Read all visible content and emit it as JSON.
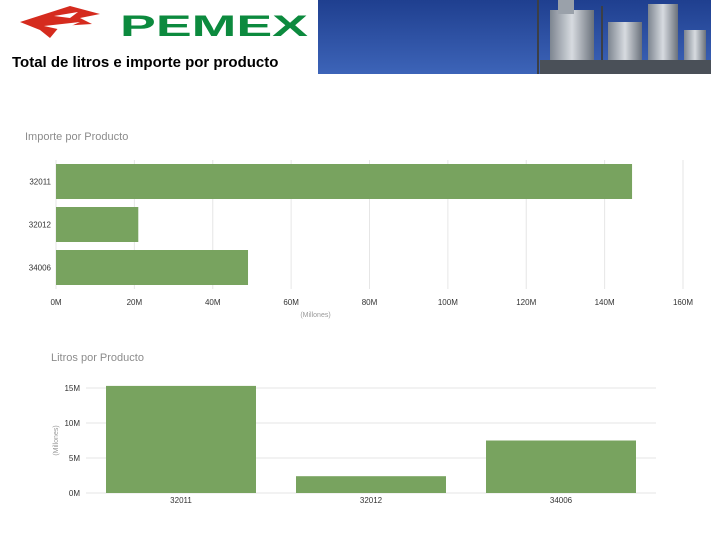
{
  "header": {
    "brand_name": "PEMEX",
    "report_title": "Total de litros e importe por producto"
  },
  "colors": {
    "bar": "#78a35f",
    "brand_red": "#d52b1e",
    "brand_green": "#0c8a3e",
    "grid": "#e6e6e6",
    "axis_text": "#333333",
    "title_text": "#8c8c8c"
  },
  "chart_data": [
    {
      "type": "bar",
      "orientation": "horizontal",
      "title": "Importe por Producto",
      "categories": [
        "32011",
        "32012",
        "34006"
      ],
      "values": [
        147000000,
        21000000,
        49000000
      ],
      "xlabel": "(Millones)",
      "xlim": [
        0,
        160000000
      ],
      "xticks": [
        {
          "value": 0,
          "label": "0M"
        },
        {
          "value": 20000000,
          "label": "20M"
        },
        {
          "value": 40000000,
          "label": "40M"
        },
        {
          "value": 60000000,
          "label": "60M"
        },
        {
          "value": 80000000,
          "label": "80M"
        },
        {
          "value": 100000000,
          "label": "100M"
        },
        {
          "value": 120000000,
          "label": "120M"
        },
        {
          "value": 140000000,
          "label": "140M"
        },
        {
          "value": 160000000,
          "label": "160M"
        }
      ],
      "grid": true
    },
    {
      "type": "bar",
      "orientation": "vertical",
      "title": "Litros por Producto",
      "categories": [
        "32011",
        "32012",
        "34006"
      ],
      "values": [
        15300000,
        2400000,
        7500000
      ],
      "ylabel": "(Millones)",
      "ylim": [
        0,
        15000000
      ],
      "yticks": [
        {
          "value": 0,
          "label": "0M"
        },
        {
          "value": 5000000,
          "label": "5M"
        },
        {
          "value": 10000000,
          "label": "10M"
        },
        {
          "value": 15000000,
          "label": "15M"
        }
      ],
      "grid": true
    }
  ]
}
